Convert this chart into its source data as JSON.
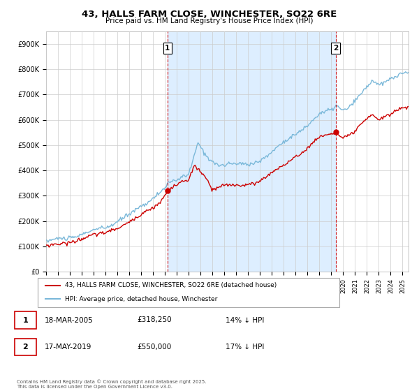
{
  "title": "43, HALLS FARM CLOSE, WINCHESTER, SO22 6RE",
  "subtitle": "Price paid vs. HM Land Registry's House Price Index (HPI)",
  "legend_line1": "43, HALLS FARM CLOSE, WINCHESTER, SO22 6RE (detached house)",
  "legend_line2": "HPI: Average price, detached house, Winchester",
  "transaction1_date": "18-MAR-2005",
  "transaction1_price": "£318,250",
  "transaction1_hpi": "14% ↓ HPI",
  "transaction2_date": "17-MAY-2019",
  "transaction2_price": "£550,000",
  "transaction2_hpi": "17% ↓ HPI",
  "footer": "Contains HM Land Registry data © Crown copyright and database right 2025.\nThis data is licensed under the Open Government Licence v3.0.",
  "hpi_color": "#7ab8d9",
  "price_color": "#cc0000",
  "vline_color": "#cc0000",
  "shade_color": "#ddeeff",
  "ylim": [
    0,
    950000
  ],
  "yticks": [
    0,
    100000,
    200000,
    300000,
    400000,
    500000,
    600000,
    700000,
    800000,
    900000
  ],
  "xlim_start": 1995.0,
  "xlim_end": 2025.5,
  "t1_year": 2005.21,
  "t2_year": 2019.37,
  "t1_price_val": 318250,
  "t2_price_val": 550000
}
